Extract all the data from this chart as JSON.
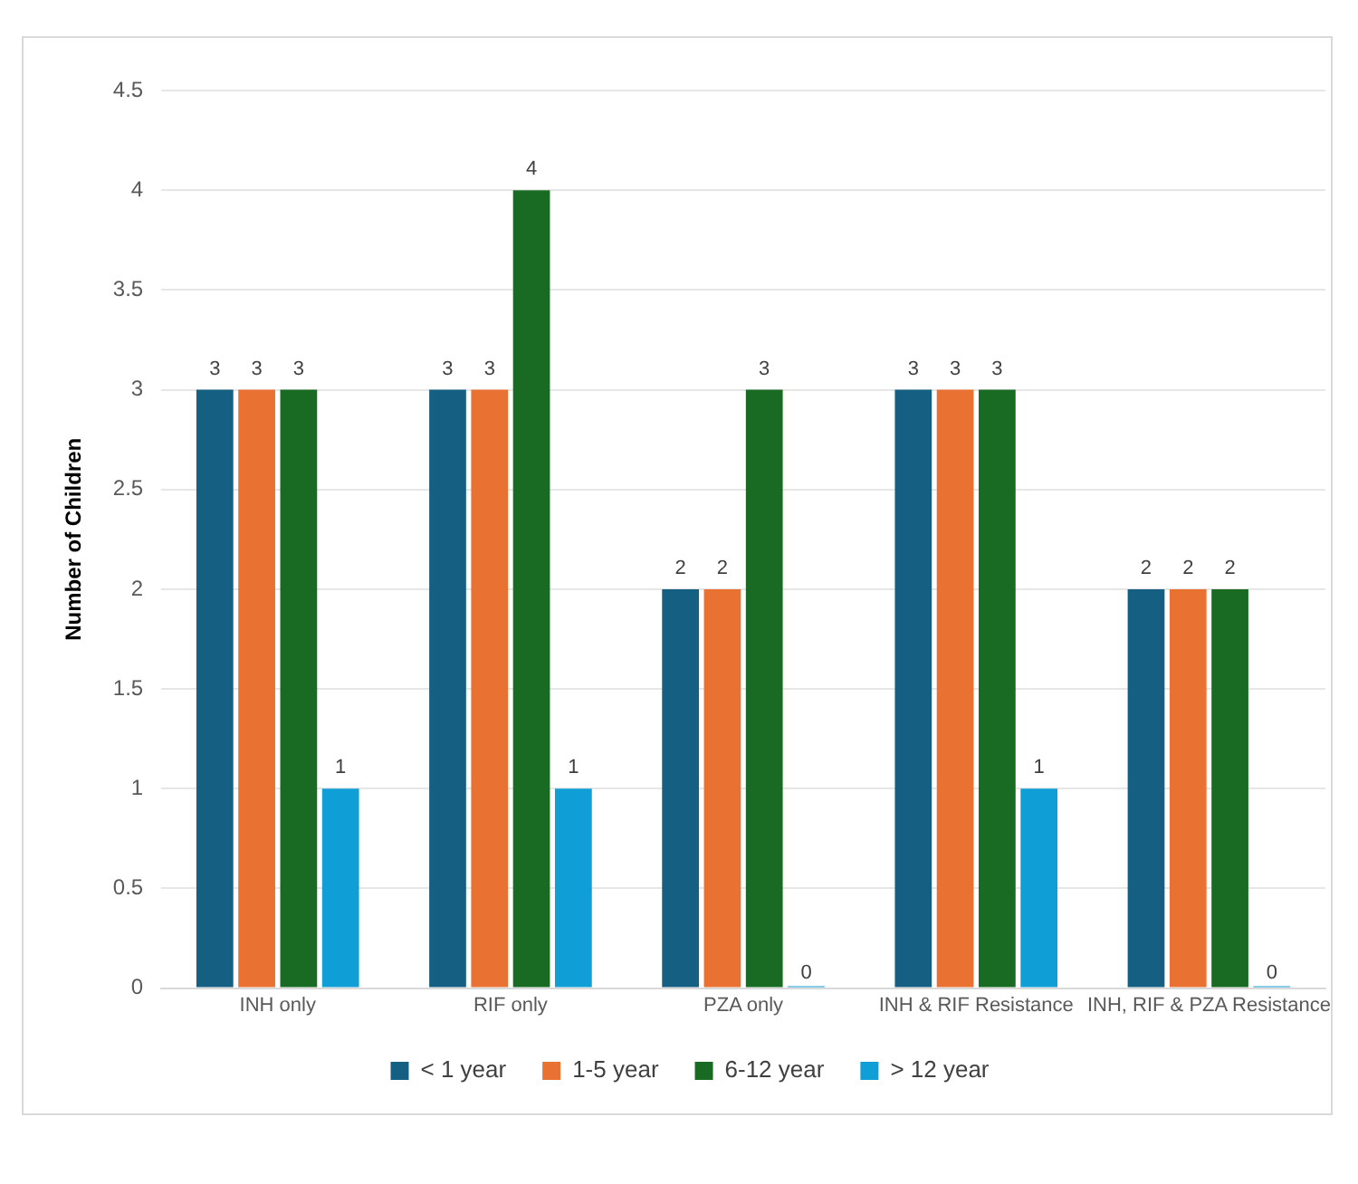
{
  "chart_data": {
    "type": "bar",
    "ylabel": "Number of Children",
    "categories": [
      "INH only",
      "RIF only",
      "PZA only",
      "INH & RIF Resistance",
      "INH, RIF & PZA Resistance"
    ],
    "series": [
      {
        "name": "< 1 year",
        "color": "#155f82",
        "values": [
          3,
          3,
          2,
          3,
          2
        ]
      },
      {
        "name": "1-5 year",
        "color": "#e97132",
        "values": [
          3,
          3,
          2,
          3,
          2
        ]
      },
      {
        "name": "6-12 year",
        "color": "#196b24",
        "values": [
          3,
          4,
          3,
          3,
          2
        ]
      },
      {
        "name": "> 12 year",
        "color": "#0f9ed5",
        "values": [
          1,
          1,
          0,
          1,
          0
        ]
      }
    ],
    "ylim": [
      0,
      4.5
    ],
    "yticks": [
      0,
      0.5,
      1,
      1.5,
      2,
      2.5,
      3,
      3.5,
      4,
      4.5
    ],
    "grid": "y",
    "legend": "bottom",
    "data_labels": true
  }
}
